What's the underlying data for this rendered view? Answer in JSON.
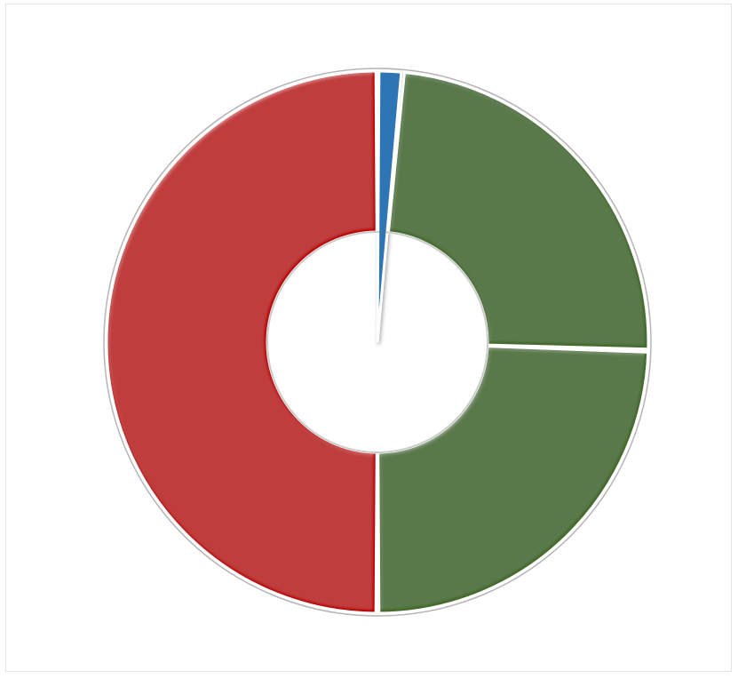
{
  "chart_data": {
    "type": "pie",
    "variant": "donut",
    "title": "",
    "categories": [
      "",
      "",
      "",
      ""
    ],
    "values": [
      1.5,
      24.0,
      24.5,
      50.0
    ],
    "colors": [
      "#2e75b6",
      "#426a2a",
      "#426a2a",
      "#b80000"
    ],
    "legend": "none",
    "data_labels": false
  }
}
